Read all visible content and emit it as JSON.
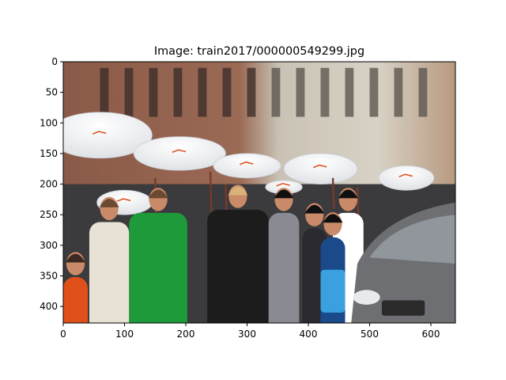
{
  "figure": {
    "title": "Image: train2017/000000549299.jpg",
    "background": "#ffffff",
    "axes_color": "#000000"
  },
  "image": {
    "width": 640,
    "height": 427,
    "scene": "Crowd of people walking in a street parade holding white umbrellas; a woman in a green t-shirt, a blonde woman in a black jacket, a man in a white shirt; brick buildings behind; a silver car at right",
    "umbrella_logo_text": "",
    "palette": {
      "sky_building": "#cdbfa8",
      "brick": "#8a5a48",
      "umbrella": "#f3f4f6",
      "green_shirt": "#1e9a3a",
      "black_jacket": "#1c1c1c",
      "white_shirt": "#eeeeee",
      "car": "#6d6f73",
      "blue_bag": "#3aa0e0",
      "orange_vest": "#e0501a"
    }
  },
  "axes": {
    "xlim": [
      0,
      640
    ],
    "ylim": [
      427,
      0
    ],
    "xticks": [
      0,
      100,
      200,
      300,
      400,
      500,
      600
    ],
    "yticks": [
      0,
      50,
      100,
      150,
      200,
      250,
      300,
      350,
      400
    ]
  }
}
